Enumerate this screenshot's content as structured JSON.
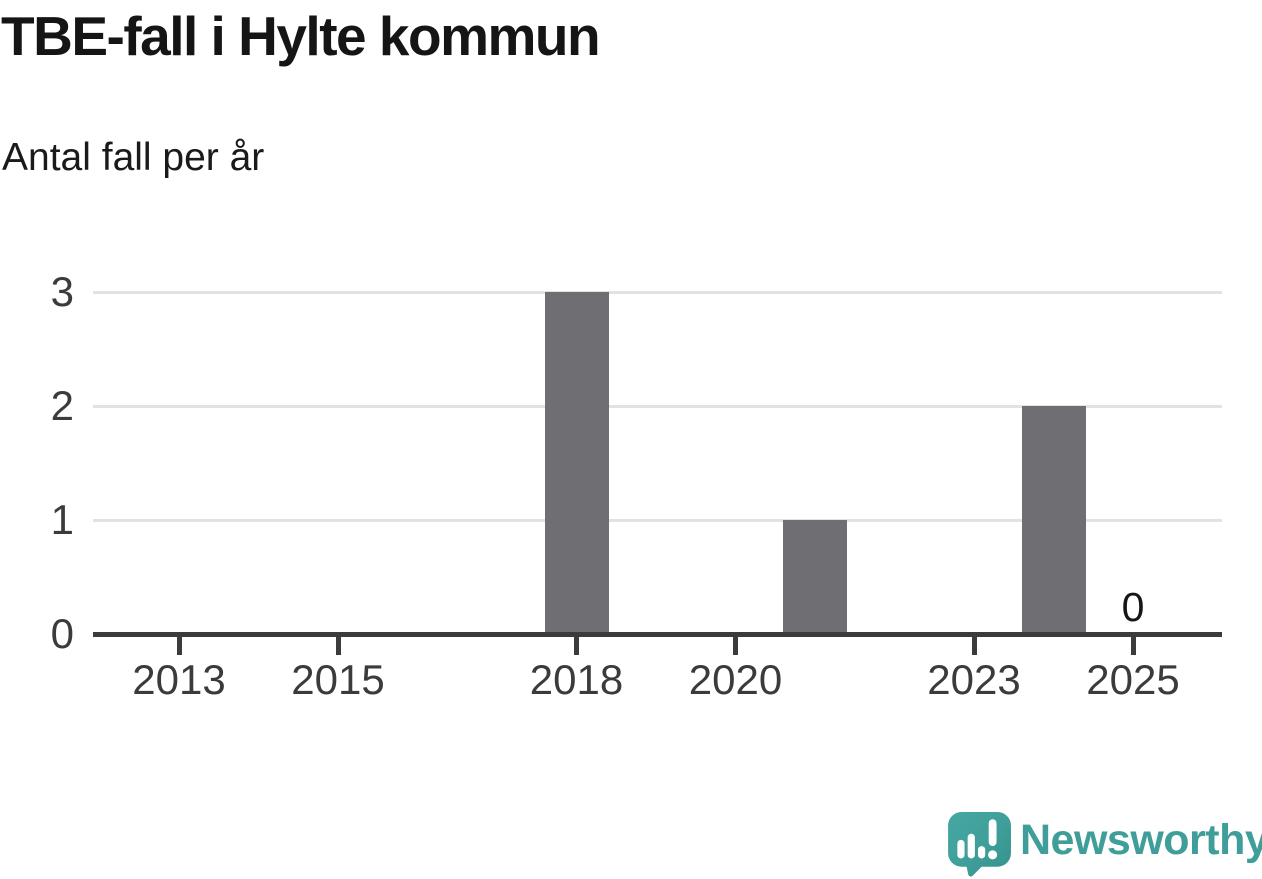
{
  "header": {
    "title": "TBE-fall i Hylte kommun",
    "subtitle": "Antal fall per år"
  },
  "chart_data": {
    "type": "bar",
    "title": "TBE-fall i Hylte kommun",
    "subtitle": "Antal fall per år",
    "categories": [
      "2013",
      "2014",
      "2015",
      "2016",
      "2017",
      "2018",
      "2019",
      "2020",
      "2021",
      "2022",
      "2023",
      "2024",
      "2025"
    ],
    "values": [
      0,
      0,
      0,
      0,
      0,
      3,
      0,
      0,
      1,
      0,
      0,
      2,
      0
    ],
    "xlabel": "",
    "ylabel": "",
    "ylim": [
      0,
      3
    ],
    "y_ticks": [
      0,
      1,
      2,
      3
    ],
    "x_tick_labels": [
      "2013",
      "2015",
      "2018",
      "2020",
      "2023",
      "2025"
    ],
    "value_labels": [
      {
        "category": "2025",
        "text": "0"
      }
    ],
    "grid": "horizontal-only",
    "legend": "none",
    "colors": {
      "bar": "#6e6e73",
      "grid": "#e2e2e2",
      "axis": "#3b3b3b",
      "tick_label": "#3b3b3b",
      "value_label": "#161616"
    }
  },
  "footer": {
    "brand": "Newsworthy",
    "brand_color": "#3f9e99",
    "logo_icon": "newsworthy-speech-bubble-bar-chart-icon"
  }
}
